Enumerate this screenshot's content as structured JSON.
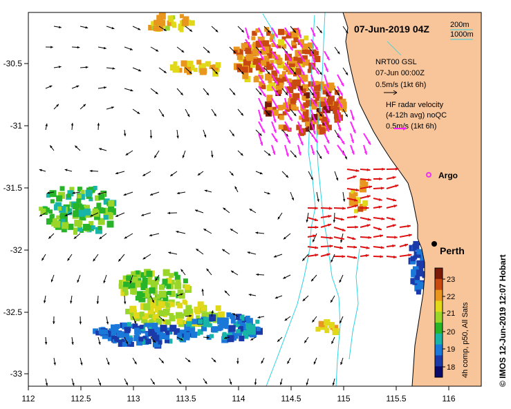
{
  "map": {
    "title": "07-Jun-2019 04Z",
    "colors": {
      "land": "#f8c49a",
      "coast": "#000000",
      "isobath": "#2ad4e4",
      "hf_arrow": "#ff22ff",
      "argo": "#ee33ee",
      "city": "#000000"
    },
    "x_ticks": [
      "112",
      "112.5",
      "113",
      "113.5",
      "114",
      "114.5",
      "115",
      "115.5",
      "116"
    ],
    "y_ticks": [
      "-30.5",
      "-31",
      "-31.5",
      "-32",
      "-32.5",
      "-33"
    ]
  },
  "legend": {
    "isobath_200": "200m",
    "isobath_1000": "1000m",
    "model_name": "NRT00 GSL",
    "model_time": "07-Jun 00:00Z",
    "model_scale": "0.5m/s (1kt 6h)",
    "hf_title": "HF radar velocity",
    "hf_avg": "(4-12h avg) noQC",
    "hf_scale": "0.5m/s (1kt 6h)"
  },
  "places": {
    "argo": "Argo",
    "city": "Perth"
  },
  "colorbar": {
    "ticks": [
      "23",
      "22",
      "21",
      "20",
      "19",
      "18"
    ],
    "label": "4h comp, p50, All Sats",
    "stops": [
      "#7a1a08",
      "#c84a10",
      "#e8961e",
      "#e0d818",
      "#9ad62a",
      "#28b428",
      "#18b4a8",
      "#1a78d8",
      "#1a3aaa",
      "#0a0a6a"
    ]
  },
  "credit": "© IMOS 12-Jun-2019 12:07 Hobart"
}
